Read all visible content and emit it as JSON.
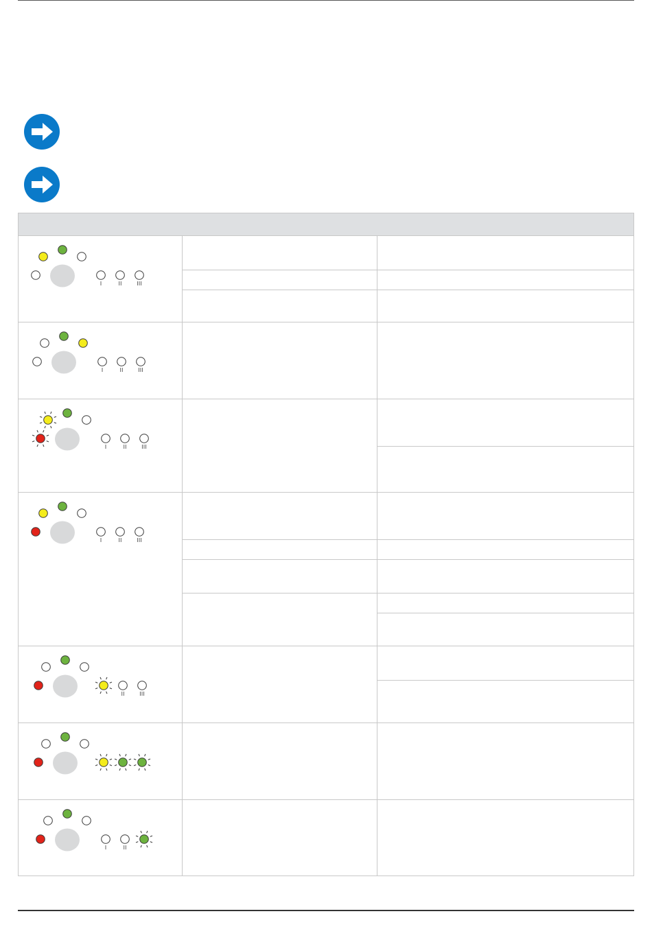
{
  "notes": [
    {
      "icon": "arrow-right-circle-icon",
      "text": ""
    },
    {
      "icon": "arrow-right-circle-icon",
      "text": ""
    }
  ],
  "colors": {
    "accent_blue": "#0a7ac9",
    "led_yellow": "#f4ec1c",
    "led_green": "#6db33f",
    "led_red": "#e2231a",
    "led_off": "#ffffff",
    "button_grey": "#d8d9da",
    "header_grey": "#dee0e2"
  },
  "table": {
    "headers": [
      "",
      "",
      ""
    ],
    "rows": [
      {
        "leds": {
          "top_left": "yellow",
          "top_mid": "green",
          "top_right": "off",
          "left": "off",
          "power_1": "off",
          "power_2": "off",
          "power_3": "off"
        },
        "causes": [
          "",
          "",
          ""
        ],
        "remedies": [
          "",
          "",
          ""
        ]
      },
      {
        "leds": {
          "top_left": "off",
          "top_mid": "green",
          "top_right": "yellow",
          "left": "off",
          "power_1": "off",
          "power_2": "off",
          "power_3": "off"
        },
        "causes": [
          ""
        ],
        "remedies": [
          ""
        ]
      },
      {
        "leds": {
          "top_left": "yellow-blinking",
          "top_mid": "green",
          "top_right": "off",
          "left": "red-blinking",
          "power_1": "off",
          "power_2": "off",
          "power_3": "off"
        },
        "causes": [
          ""
        ],
        "remedies": [
          "",
          ""
        ]
      },
      {
        "leds": {
          "top_left": "yellow",
          "top_mid": "green",
          "top_right": "off",
          "left": "red",
          "power_1": "off",
          "power_2": "off",
          "power_3": "off"
        },
        "causes": [
          "",
          "",
          "",
          ""
        ],
        "remedies": [
          "",
          "",
          "",
          "",
          ""
        ]
      },
      {
        "leds": {
          "top_left": "off",
          "top_mid": "green",
          "top_right": "off",
          "left": "red",
          "power_1": "yellow-blinking",
          "power_2": "off",
          "power_3": "off"
        },
        "causes": [
          ""
        ],
        "remedies": [
          "",
          ""
        ]
      },
      {
        "leds": {
          "top_left": "off",
          "top_mid": "green",
          "top_right": "off",
          "left": "red",
          "power_1": "yellow-blinking",
          "power_2": "green-blinking",
          "power_3": "green-blinking"
        },
        "causes": [
          ""
        ],
        "remedies": [
          ""
        ]
      },
      {
        "leds": {
          "top_left": "off",
          "top_mid": "green",
          "top_right": "off",
          "left": "red",
          "power_1": "off",
          "power_2": "off",
          "power_3": "green-blinking"
        },
        "causes": [
          ""
        ],
        "remedies": [
          ""
        ]
      }
    ]
  },
  "footer": {
    "text": ""
  }
}
